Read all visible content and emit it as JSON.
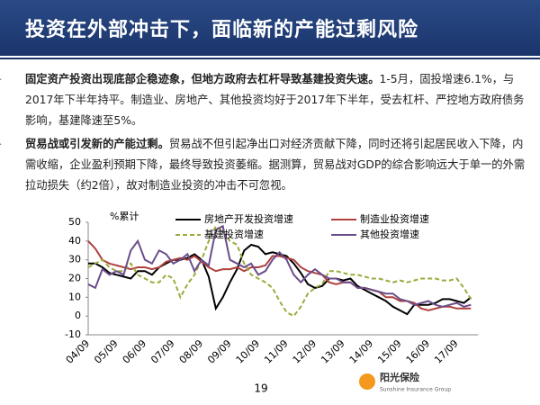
{
  "header": {
    "title": "投资在外部冲击下，面临新的产能过剩风险"
  },
  "bullets": [
    {
      "lead": "固定资产投资出现底部企稳迹象，但地方政府去杠杆导致基建投资失速。",
      "text": "1-5月，固投增速6.1%，与2017年下半年持平。制造业、房地产、其他投资均好于2017年下半年，受去杠杆、严控地方政府债务影响，基建降速至5%。"
    },
    {
      "lead": "贸易战或引发新的产能过剩。",
      "text": "贸易战不但引起净出口对经济贡献下降，同时还将引起居民收入下降，内需收缩，企业盈利预期下降，最终导致投资萎缩。据测算，贸易战对GDP的综合影响远大于单一的外需拉动损失（约2倍），故对制造业投资的冲击不可忽视。"
    }
  ],
  "chart_data": {
    "type": "line",
    "unit_label": "%累计",
    "x": [
      "04/09",
      "04/12",
      "05/03",
      "05/06",
      "05/09",
      "05/12",
      "06/03",
      "06/06",
      "06/09",
      "06/12",
      "07/03",
      "07/06",
      "07/09",
      "07/12",
      "08/03",
      "08/06",
      "08/09",
      "08/12",
      "09/03",
      "09/06",
      "09/09",
      "09/12",
      "10/03",
      "10/06",
      "10/09",
      "10/12",
      "11/03",
      "11/06",
      "11/09",
      "11/12",
      "12/03",
      "12/06",
      "12/09",
      "12/12",
      "13/03",
      "13/06",
      "13/09",
      "13/12",
      "14/03",
      "14/06",
      "14/09",
      "14/12",
      "15/03",
      "15/06",
      "15/09",
      "15/12",
      "16/03",
      "16/06",
      "16/09",
      "16/12",
      "17/03",
      "17/06",
      "17/09",
      "17/12",
      "18/03"
    ],
    "series": [
      {
        "name": "房地产开发投资增速",
        "color": "#000000",
        "values": [
          28,
          28,
          26,
          23,
          22,
          21,
          20,
          24,
          24,
          22,
          26,
          28,
          30,
          30,
          31,
          33,
          30,
          21,
          4,
          10,
          18,
          25,
          35,
          38,
          37,
          33,
          34,
          33,
          32,
          28,
          23,
          17,
          15,
          16,
          20,
          20,
          19,
          20,
          16,
          14,
          12,
          10,
          8,
          5,
          3,
          1,
          6,
          6,
          6,
          7,
          9,
          9,
          8,
          7,
          10
        ]
      },
      {
        "name": "制造业投资增速",
        "color": "#b0413e",
        "values": [
          40,
          36,
          30,
          28,
          27,
          26,
          25,
          26,
          26,
          25,
          26,
          29,
          30,
          31,
          30,
          32,
          29,
          26,
          24,
          25,
          25,
          26,
          24,
          26,
          26,
          27,
          32,
          32,
          31,
          30,
          26,
          24,
          23,
          22,
          18,
          17,
          18,
          18,
          15,
          15,
          14,
          13,
          10,
          10,
          8,
          8,
          7,
          4,
          3,
          4,
          5,
          5,
          4,
          4,
          4
        ]
      },
      {
        "name": "基建投资增速",
        "color": "#9aab3c",
        "dashed": true,
        "values": [
          26,
          28,
          30,
          26,
          24,
          24,
          28,
          22,
          20,
          18,
          18,
          22,
          20,
          10,
          17,
          22,
          30,
          40,
          48,
          45,
          40,
          38,
          28,
          22,
          20,
          18,
          15,
          8,
          2,
          0,
          5,
          12,
          15,
          17,
          24,
          24,
          23,
          22,
          22,
          21,
          20,
          20,
          19,
          18,
          19,
          18,
          19,
          20,
          20,
          20,
          19,
          19,
          20,
          15,
          9
        ]
      },
      {
        "name": "其他投资增速",
        "color": "#6b4d8a",
        "values": [
          17,
          15,
          25,
          22,
          24,
          22,
          35,
          40,
          30,
          28,
          35,
          33,
          28,
          30,
          33,
          24,
          30,
          27,
          46,
          48,
          30,
          28,
          26,
          28,
          22,
          24,
          30,
          34,
          30,
          22,
          18,
          22,
          25,
          22,
          20,
          20,
          18,
          18,
          15,
          15,
          14,
          13,
          12,
          12,
          9,
          8,
          6,
          7,
          8,
          6,
          5,
          6,
          7,
          5,
          6
        ]
      }
    ],
    "ylim": [
      -10,
      50
    ],
    "yticks": [
      -10,
      0,
      10,
      20,
      30,
      40,
      50
    ],
    "xtick_every": 4
  },
  "footer": {
    "page": "19",
    "logo": "阳光保险",
    "logo_en": "Sunshine Insurance Group"
  }
}
